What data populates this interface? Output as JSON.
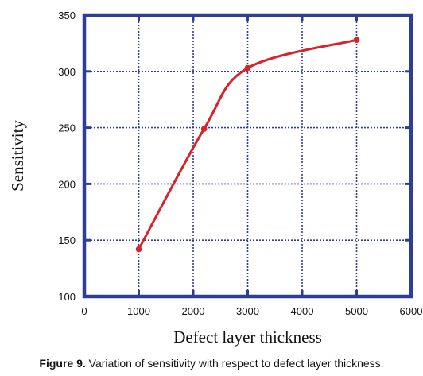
{
  "chart_data": {
    "type": "line",
    "xlabel": "Defect layer thickness",
    "ylabel": "Sensitivity",
    "xlim": [
      0,
      6000
    ],
    "ylim": [
      100,
      350
    ],
    "xticks": [
      0,
      1000,
      2000,
      3000,
      4000,
      5000,
      6000
    ],
    "yticks": [
      100,
      150,
      200,
      250,
      300,
      350
    ],
    "grid": true,
    "series": [
      {
        "color": "#d8232a",
        "x": [
          1000,
          2200,
          3000,
          5000
        ],
        "y": [
          142,
          249,
          303,
          328
        ]
      }
    ],
    "frame_color": "#2e3f93",
    "grid_color": "#2e3f93"
  },
  "caption": {
    "lead": "Figure 9.",
    "text": " Variation of sensitivity with respect to defect layer thickness."
  }
}
